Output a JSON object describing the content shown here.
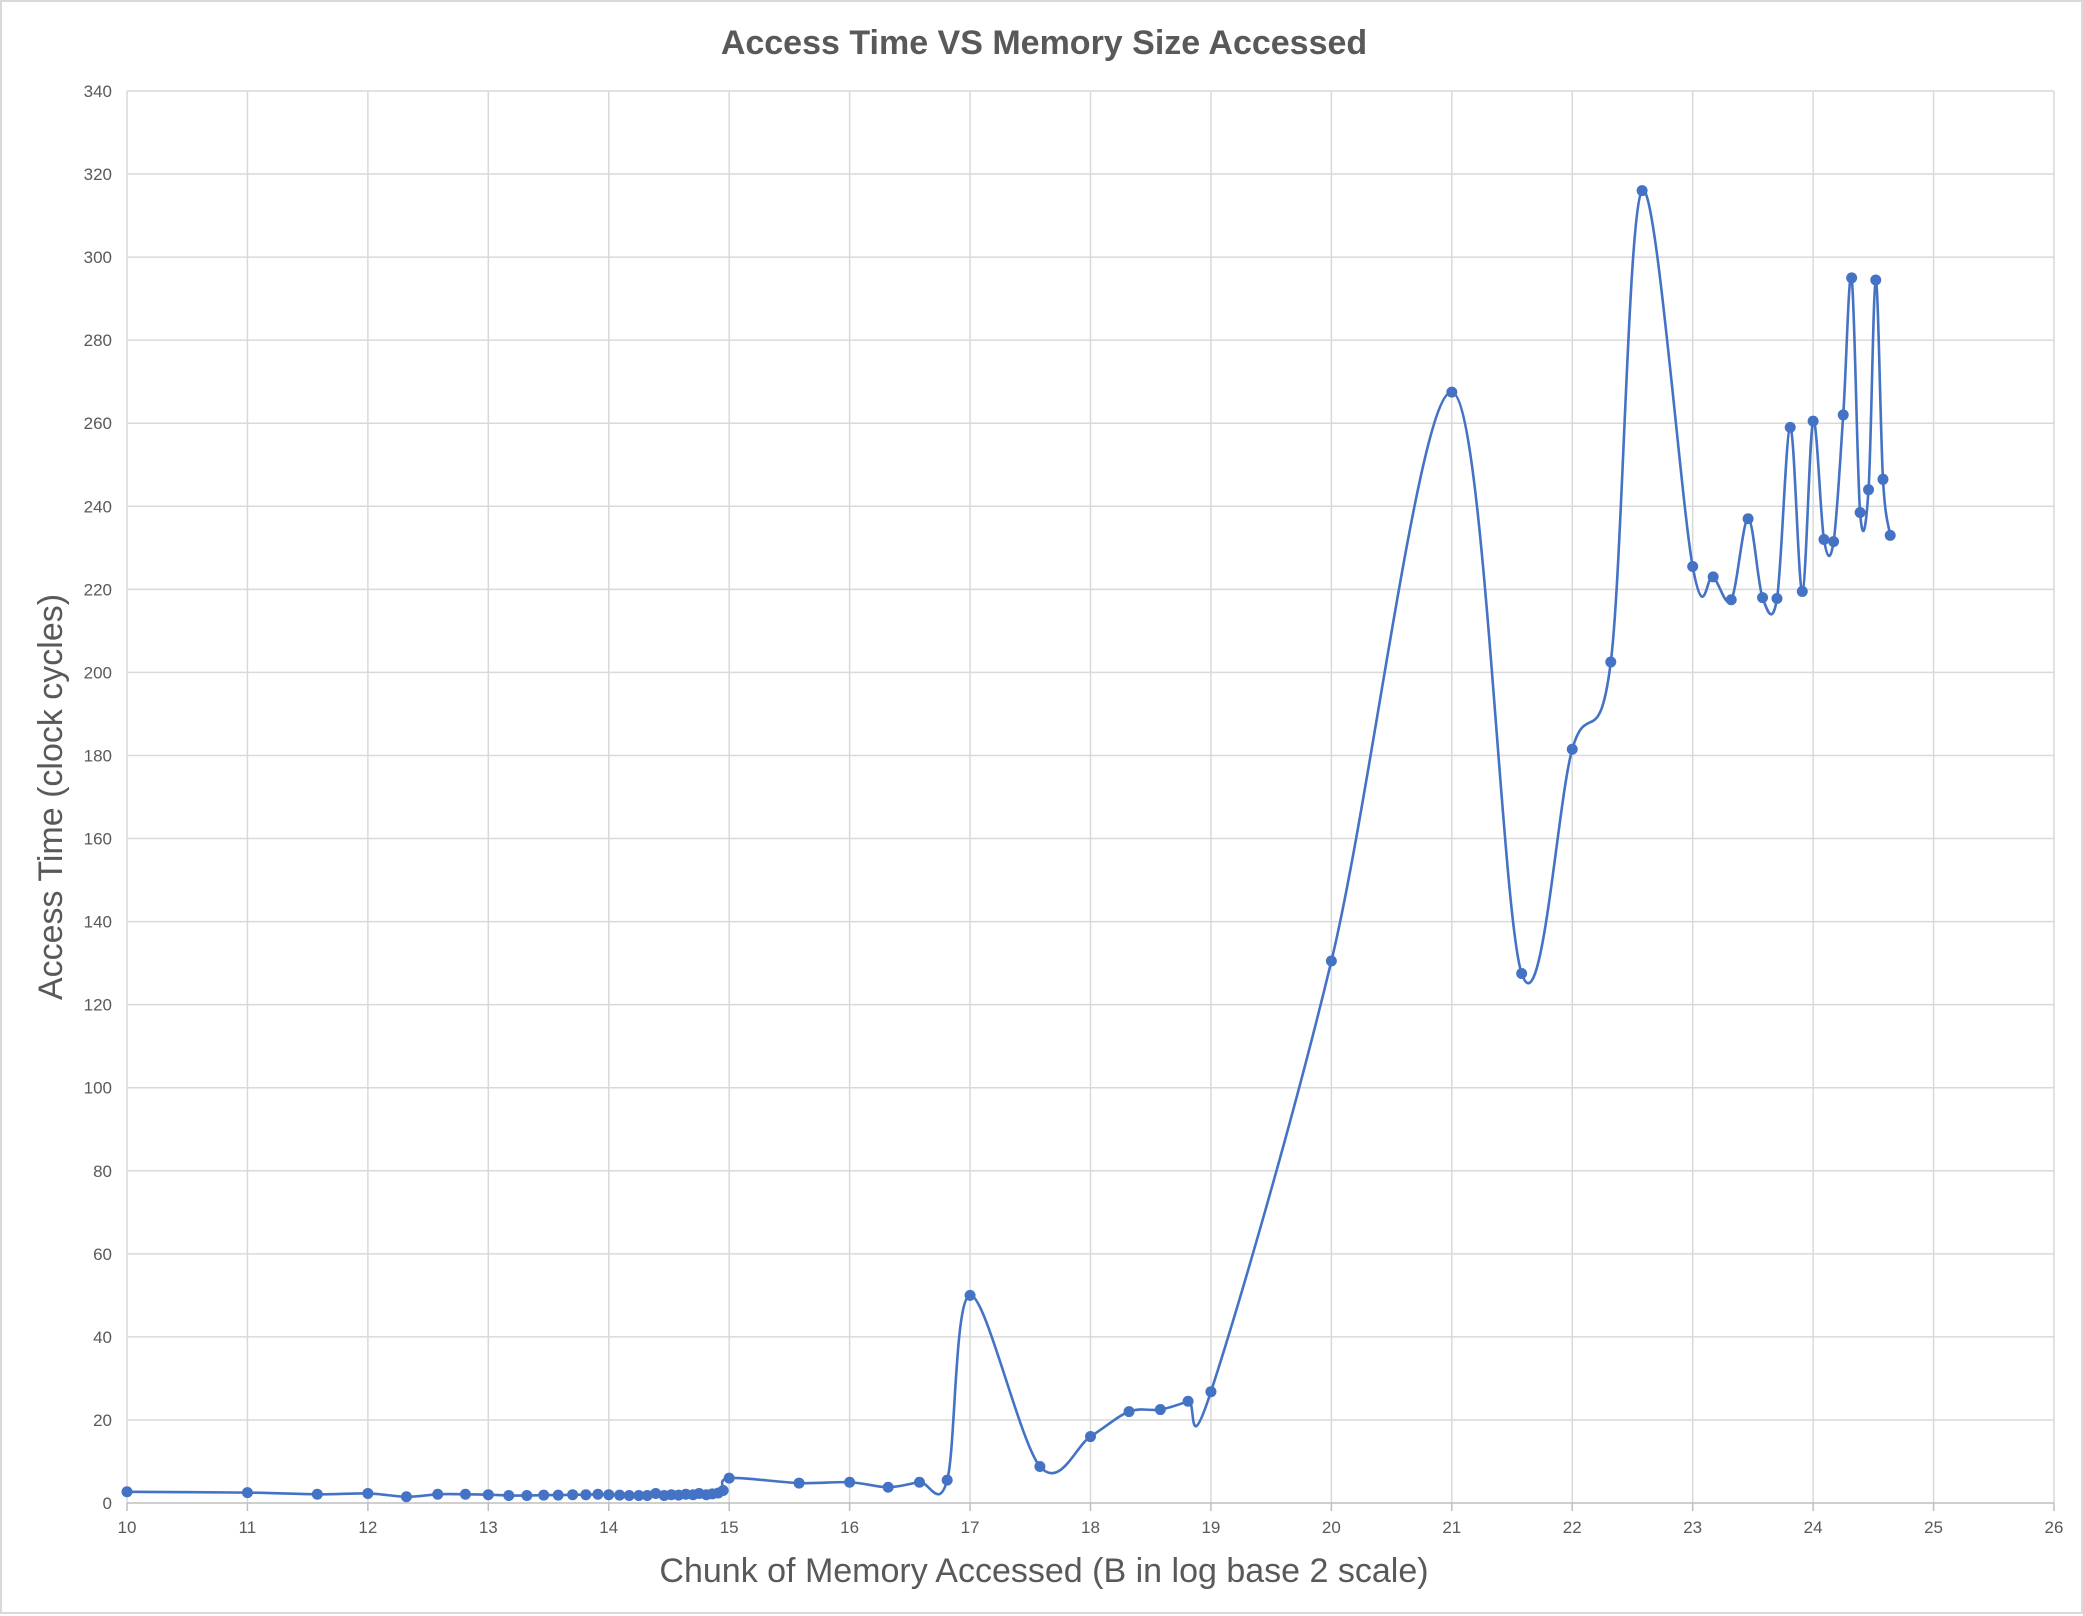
{
  "chart_data": {
    "type": "scatter",
    "title": "Access Time VS Memory Size Accessed",
    "xlabel": "Chunk of Memory Accessed (B in log base 2 scale)",
    "ylabel": "Access Time (clock cycles)",
    "xlim": [
      10,
      26
    ],
    "ylim": [
      0,
      340
    ],
    "xticks": [
      10,
      11,
      12,
      13,
      14,
      15,
      16,
      17,
      18,
      19,
      20,
      21,
      22,
      23,
      24,
      25,
      26
    ],
    "yticks": [
      0,
      20,
      40,
      60,
      80,
      100,
      120,
      140,
      160,
      180,
      200,
      220,
      240,
      260,
      280,
      300,
      320,
      340
    ],
    "grid": true,
    "smooth_line": true,
    "markers": true,
    "colors": {
      "series": "#4472c4",
      "grid": "#d9d9d9",
      "text": "#595959"
    },
    "series": [
      {
        "x": [
          10,
          11,
          11.58,
          12,
          12.32,
          12.58,
          12.81,
          13,
          13.17,
          13.32,
          13.46,
          13.58,
          13.7,
          13.81,
          13.91,
          14,
          14.09,
          14.17,
          14.25,
          14.32,
          14.39,
          14.46,
          14.52,
          14.58,
          14.64,
          14.7,
          14.75,
          14.81,
          14.86,
          14.91,
          14.95,
          15,
          15.58,
          16,
          16.32,
          16.58,
          16.81,
          17,
          17.58,
          18,
          18.32,
          18.58,
          18.81,
          19,
          20,
          21,
          21.58,
          22,
          22.32,
          22.58,
          23,
          23.17,
          23.32,
          23.46,
          23.58,
          23.7,
          23.81,
          23.91,
          24,
          24.09,
          24.17,
          24.25,
          24.32,
          24.39,
          24.46,
          24.52,
          24.58,
          24.64
        ],
        "y": [
          2.7,
          2.5,
          2.1,
          2.3,
          1.5,
          2.1,
          2.1,
          2.0,
          1.8,
          1.8,
          1.9,
          1.9,
          2.0,
          2.0,
          2.1,
          2.0,
          1.9,
          1.8,
          1.8,
          1.8,
          2.3,
          1.8,
          2.0,
          1.9,
          2.1,
          2.0,
          2.3,
          2.0,
          2.2,
          2.4,
          3.0,
          6.0,
          4.8,
          5.0,
          3.8,
          5.0,
          5.5,
          50,
          8.8,
          16,
          22,
          22.5,
          24.5,
          26.8,
          130.5,
          267.5,
          127.5,
          181.5,
          202.5,
          316,
          225.5,
          223,
          217.5,
          237,
          218,
          217.8,
          259,
          219.5,
          260.5,
          232,
          231.5,
          262,
          295,
          238.5,
          244,
          294.5,
          246.5,
          233
        ]
      }
    ]
  }
}
